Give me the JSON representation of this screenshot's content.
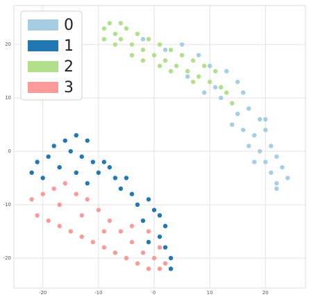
{
  "chart_data": {
    "type": "scatter",
    "xlim": [
      -25.2,
      27.2
    ],
    "ylim": [
      -25.6,
      27.3
    ],
    "xticks": [
      -20,
      -10,
      0,
      10,
      20
    ],
    "yticks": [
      -20,
      -10,
      0,
      10,
      20
    ],
    "grid": true,
    "legend": "upper left",
    "series": [
      {
        "name": "0",
        "color": "#a6cee3",
        "x": [
          -2,
          2,
          5,
          8,
          10,
          13,
          15,
          12,
          16,
          15,
          17,
          19,
          16,
          18,
          20,
          21,
          19,
          17,
          20,
          22,
          21,
          23,
          22,
          24,
          22,
          18,
          20,
          14,
          11,
          6,
          9
        ],
        "y": [
          21,
          19,
          20,
          18,
          16,
          15,
          13,
          10,
          11,
          7,
          8,
          6,
          4,
          3,
          4,
          1,
          0,
          1,
          -2,
          -1,
          -4,
          -3,
          -6,
          -5,
          -7,
          -2,
          6,
          5,
          12,
          14,
          11
        ]
      },
      {
        "name": "1",
        "color": "#1f78b4",
        "x": [
          -22,
          -21,
          -19,
          -18,
          -16,
          -14,
          -12,
          -15,
          -13,
          -11,
          -9,
          -8,
          -10,
          -7,
          -6,
          -5,
          -4,
          -3,
          -1,
          0,
          1,
          2,
          1,
          2,
          3,
          3,
          -2,
          -17,
          -20,
          -14,
          -12,
          -1
        ],
        "y": [
          -4,
          -2,
          -1,
          1,
          2,
          3,
          2,
          0,
          -1,
          -2,
          -2,
          -3,
          -4,
          -5,
          -7,
          -5,
          -8,
          -10,
          -9,
          -11,
          -12,
          -14,
          -16,
          -18,
          -20,
          -22,
          -13,
          -3,
          -5,
          -4,
          -6,
          -17
        ]
      },
      {
        "name": "2",
        "color": "#b2df8a",
        "x": [
          -9,
          -8,
          -7,
          -6,
          -5,
          -9,
          -6,
          -4,
          -3,
          -2,
          -1,
          0,
          1,
          2,
          3,
          4,
          5,
          6,
          7,
          8,
          9,
          10,
          11,
          12,
          13,
          -7,
          -2,
          3,
          7,
          14,
          -4,
          1
        ],
        "y": [
          23,
          24,
          22,
          24,
          23,
          21,
          21,
          20,
          22,
          19,
          21,
          18,
          20,
          17,
          19,
          16,
          18,
          15,
          17,
          14,
          16,
          13,
          15,
          12,
          11,
          20,
          17,
          15,
          13,
          9,
          18,
          16
        ]
      },
      {
        "name": "3",
        "color": "#fb9a99",
        "x": [
          -22,
          -21,
          -19,
          -17,
          -15,
          -13,
          -11,
          -9,
          -7,
          -5,
          -3,
          -1,
          1,
          2,
          0,
          -2,
          -4,
          -6,
          -8,
          -10,
          -12,
          -14,
          -16,
          -18,
          -20,
          -13,
          -9,
          -4,
          -1,
          1,
          -17
        ],
        "y": [
          -9,
          -12,
          -13,
          -14,
          -15,
          -16,
          -17,
          -18,
          -19,
          -20,
          -21,
          -22,
          -22,
          -21,
          -20,
          -19,
          -17,
          -15,
          -13,
          -11,
          -9,
          -8,
          -6,
          -7,
          -8,
          -12,
          -15,
          -14,
          -15,
          -18,
          -10
        ]
      }
    ]
  }
}
